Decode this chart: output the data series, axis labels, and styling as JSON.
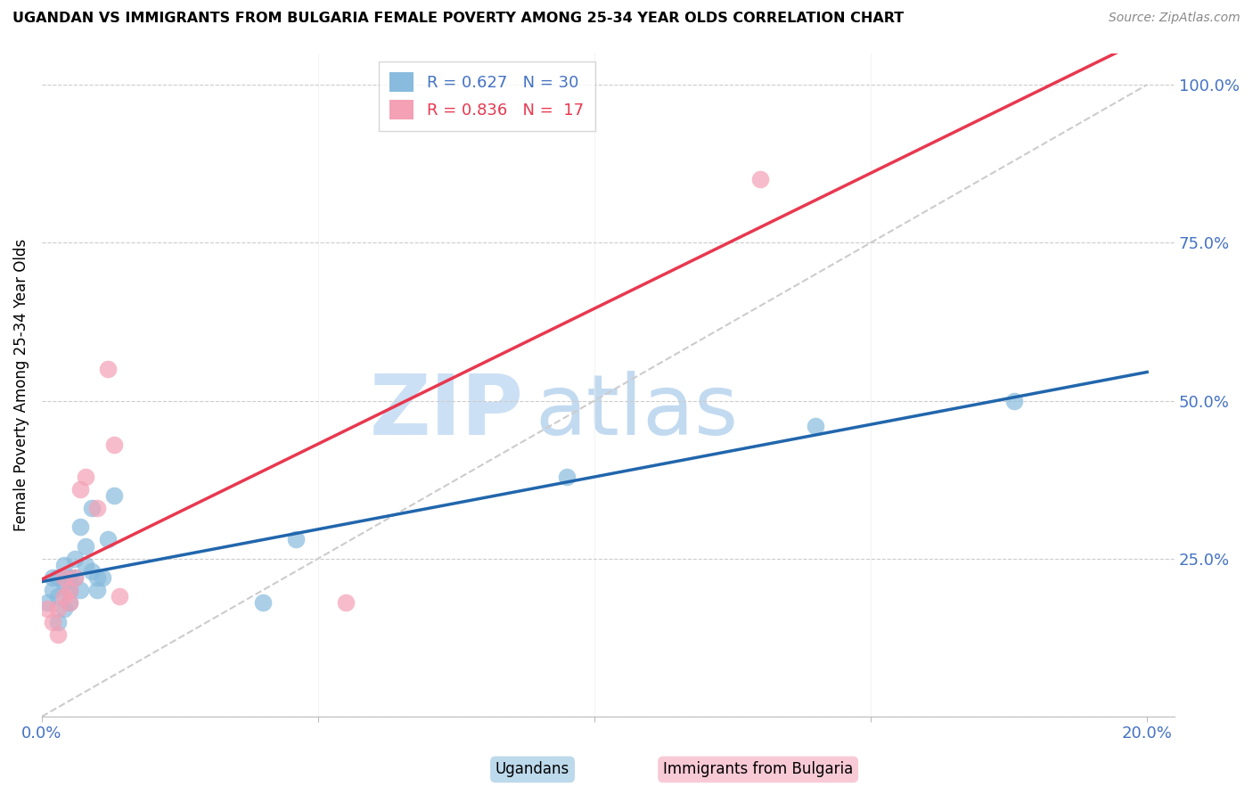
{
  "title": "UGANDAN VS IMMIGRANTS FROM BULGARIA FEMALE POVERTY AMONG 25-34 YEAR OLDS CORRELATION CHART",
  "source": "Source: ZipAtlas.com",
  "ylabel": "Female Poverty Among 25-34 Year Olds",
  "xlim": [
    0.0,
    0.205
  ],
  "ylim": [
    0.0,
    1.05
  ],
  "xticks": [
    0.0,
    0.05,
    0.1,
    0.15,
    0.2
  ],
  "xtick_labels": [
    "0.0%",
    "",
    "",
    "",
    "20.0%"
  ],
  "ytick_positions": [
    0.0,
    0.25,
    0.5,
    0.75,
    1.0
  ],
  "ytick_labels": [
    "",
    "25.0%",
    "50.0%",
    "75.0%",
    "100.0%"
  ],
  "color_ugandan": "#88bbdd",
  "color_bulgaria": "#f4a0b5",
  "color_trendline_ugandan": "#2166ac",
  "color_trendline_bulgaria": "#e8384f",
  "color_diagonal": "#cccccc",
  "color_grid": "#cccccc",
  "ugandan_x": [
    0.001,
    0.002,
    0.002,
    0.003,
    0.003,
    0.003,
    0.004,
    0.004,
    0.004,
    0.005,
    0.005,
    0.005,
    0.006,
    0.006,
    0.007,
    0.007,
    0.008,
    0.008,
    0.009,
    0.009,
    0.01,
    0.01,
    0.011,
    0.012,
    0.013,
    0.04,
    0.046,
    0.095,
    0.14,
    0.176
  ],
  "ugandan_y": [
    0.18,
    0.2,
    0.22,
    0.15,
    0.19,
    0.22,
    0.17,
    0.21,
    0.24,
    0.18,
    0.2,
    0.22,
    0.22,
    0.25,
    0.2,
    0.3,
    0.24,
    0.27,
    0.23,
    0.33,
    0.2,
    0.22,
    0.22,
    0.28,
    0.35,
    0.18,
    0.28,
    0.38,
    0.46,
    0.5
  ],
  "bulgaria_x": [
    0.001,
    0.002,
    0.003,
    0.003,
    0.004,
    0.004,
    0.005,
    0.005,
    0.006,
    0.007,
    0.008,
    0.01,
    0.012,
    0.013,
    0.014,
    0.055,
    0.13
  ],
  "bulgaria_y": [
    0.17,
    0.15,
    0.13,
    0.17,
    0.19,
    0.22,
    0.18,
    0.2,
    0.22,
    0.36,
    0.38,
    0.33,
    0.55,
    0.43,
    0.19,
    0.18,
    0.85
  ],
  "legend_label_1": "Ugandans",
  "legend_label_2": "Immigrants from Bulgaria",
  "r1": "0.627",
  "n1": "30",
  "r2": "0.836",
  "n2": "17",
  "trendline_x_start": 0.0,
  "trendline_x_end": 0.2
}
